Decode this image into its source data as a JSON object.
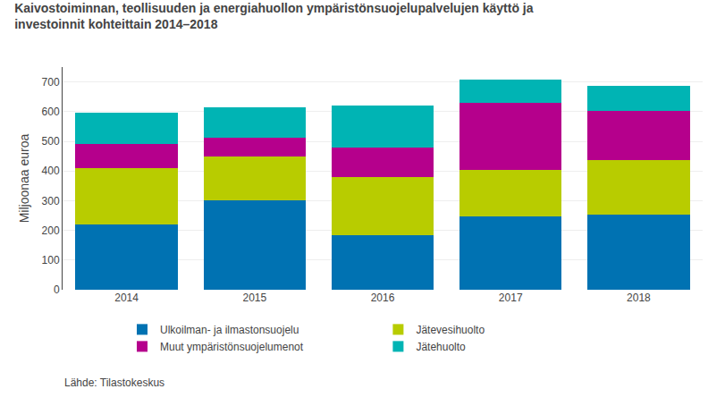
{
  "chart_data": {
    "type": "bar",
    "stacked": true,
    "title": "Kaivostoiminnan, teollisuuden ja energiahuollon ympäristönsuojelupalvelujen käyttö ja\ninvestoinnit kohteittain 2014–2018",
    "ylabel": "Miljoonaa euroa",
    "annotations": [
      "Lähde: Tilastokeskus"
    ],
    "categories": [
      "2014",
      "2015",
      "2016",
      "2017",
      "2018"
    ],
    "series": [
      {
        "name": "Ulkoilman- ja ilmastonsuojelu",
        "color": "#0072b2",
        "values": [
          220,
          300,
          185,
          248,
          253
        ]
      },
      {
        "name": "Jätevesihuolto",
        "color": "#b8cc00",
        "values": [
          190,
          148,
          195,
          155,
          183
        ]
      },
      {
        "name": "Muut ympäristönsuojelumenot",
        "color": "#b5008c",
        "values": [
          80,
          65,
          100,
          228,
          165
        ]
      },
      {
        "name": "Jätehuolto",
        "color": "#00b4b4",
        "values": [
          105,
          100,
          140,
          78,
          85
        ]
      }
    ],
    "ylim": [
      0,
      750
    ],
    "yticks": [
      0,
      100,
      200,
      300,
      400,
      500,
      600,
      700
    ],
    "grid": true,
    "legend": "bottom"
  }
}
